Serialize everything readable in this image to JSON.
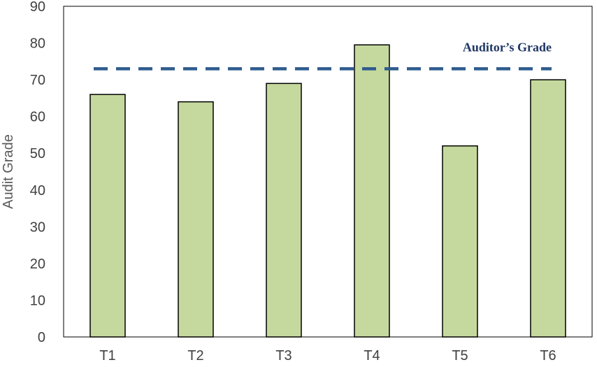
{
  "chart_data": {
    "type": "bar",
    "categories": [
      "T1",
      "T2",
      "T3",
      "T4",
      "T5",
      "T6"
    ],
    "values": [
      66,
      64,
      69,
      79.5,
      52,
      70
    ],
    "ylabel": "Audit Grade",
    "xlabel": "",
    "ylim": [
      0,
      90
    ],
    "yticks": [
      0,
      10,
      20,
      30,
      40,
      50,
      60,
      70,
      80,
      90
    ],
    "grid": false,
    "reference_line": {
      "label": "Auditor’s Grade",
      "value": 73,
      "style": "dashed"
    },
    "colors": {
      "bar_fill": "#c5d99e",
      "bar_stroke": "#000000",
      "reference_line": "#2e5b8e",
      "annotation_text": "#1f3864"
    }
  }
}
